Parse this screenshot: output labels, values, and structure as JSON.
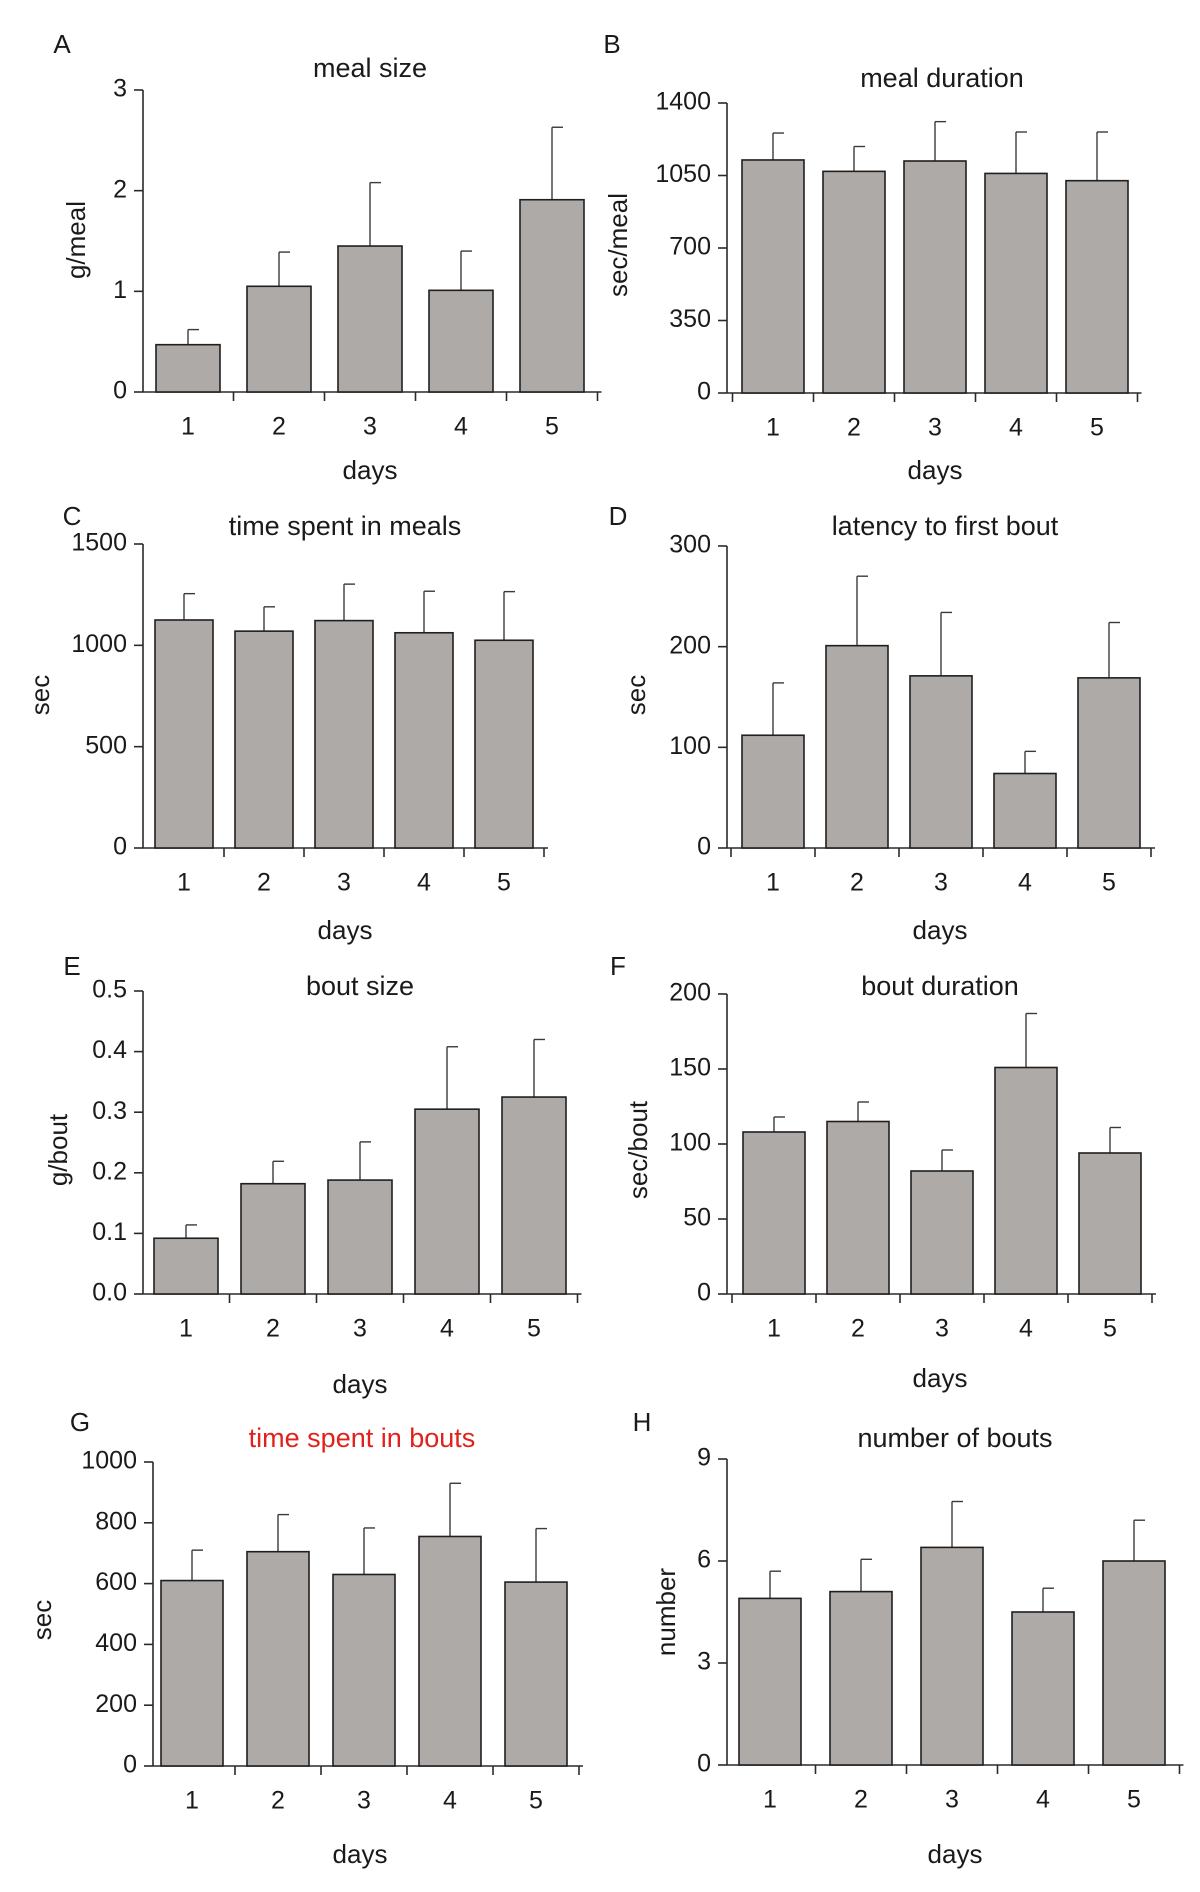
{
  "style": {
    "bar_fill": "#aeaaa8",
    "title_highlight": "#e0211c",
    "text": "#1a1a1a"
  },
  "chart_data": [
    {
      "letter": "A",
      "type": "bar",
      "title": "meal size",
      "title_color": "",
      "xlabel": "days",
      "ylabel": "g/meal",
      "categories": [
        "1",
        "2",
        "3",
        "4",
        "5"
      ],
      "values": [
        0.47,
        1.05,
        1.45,
        1.01,
        1.91
      ],
      "errors": [
        0.15,
        0.34,
        0.63,
        0.39,
        0.72
      ],
      "ylim": [
        0,
        3
      ],
      "yticks": [
        0,
        1,
        2,
        3
      ],
      "ytick_labels": [
        "0",
        "1",
        "2",
        "3"
      ]
    },
    {
      "letter": "B",
      "type": "bar",
      "title": "meal duration",
      "title_color": "",
      "xlabel": "days",
      "ylabel": "sec/meal",
      "categories": [
        "1",
        "2",
        "3",
        "4",
        "5"
      ],
      "values": [
        1125,
        1070,
        1120,
        1060,
        1025
      ],
      "errors": [
        130,
        120,
        190,
        200,
        235
      ],
      "ylim": [
        0,
        1400
      ],
      "yticks": [
        0,
        350,
        700,
        1050,
        1400
      ],
      "ytick_labels": [
        "0",
        "350",
        "700",
        "1050",
        "1400"
      ]
    },
    {
      "letter": "C",
      "type": "bar",
      "title": "time spent in meals",
      "title_color": "",
      "xlabel": "days",
      "ylabel": "sec",
      "categories": [
        "1",
        "2",
        "3",
        "4",
        "5"
      ],
      "values": [
        1125,
        1070,
        1122,
        1062,
        1025
      ],
      "errors": [
        130,
        120,
        180,
        205,
        240
      ],
      "ylim": [
        0,
        1500
      ],
      "yticks": [
        0,
        500,
        1000,
        1500
      ],
      "ytick_labels": [
        "0",
        "500",
        "1000",
        "1500"
      ]
    },
    {
      "letter": "D",
      "type": "bar",
      "title": "latency to first bout",
      "title_color": "",
      "xlabel": "days",
      "ylabel": "sec",
      "categories": [
        "1",
        "2",
        "3",
        "4",
        "5"
      ],
      "values": [
        112,
        201,
        171,
        74,
        169
      ],
      "errors": [
        52,
        69,
        63,
        22,
        55
      ],
      "ylim": [
        0,
        300
      ],
      "yticks": [
        0,
        100,
        200,
        300
      ],
      "ytick_labels": [
        "0",
        "100",
        "200",
        "300"
      ]
    },
    {
      "letter": "E",
      "type": "bar",
      "title": "bout size",
      "title_color": "",
      "xlabel": "days",
      "ylabel": "g/bout",
      "categories": [
        "1",
        "2",
        "3",
        "4",
        "5"
      ],
      "values": [
        0.092,
        0.182,
        0.188,
        0.305,
        0.325
      ],
      "errors": [
        0.022,
        0.037,
        0.063,
        0.103,
        0.095
      ],
      "ylim": [
        0,
        0.5
      ],
      "yticks": [
        0,
        0.1,
        0.2,
        0.3,
        0.4,
        0.5
      ],
      "ytick_labels": [
        "0.0",
        "0.1",
        "0.2",
        "0.3",
        "0.4",
        "0.5"
      ]
    },
    {
      "letter": "F",
      "type": "bar",
      "title": "bout duration",
      "title_color": "",
      "xlabel": "days",
      "ylabel": "sec/bout",
      "categories": [
        "1",
        "2",
        "3",
        "4",
        "5"
      ],
      "values": [
        108,
        115,
        82,
        151,
        94
      ],
      "errors": [
        10,
        13,
        14,
        36,
        17
      ],
      "ylim": [
        0,
        200
      ],
      "yticks": [
        0,
        50,
        100,
        150,
        200
      ],
      "ytick_labels": [
        "0",
        "50",
        "100",
        "150",
        "200"
      ]
    },
    {
      "letter": "G",
      "type": "bar",
      "title": "time spent in bouts",
      "title_color": "#e0211c",
      "xlabel": "days",
      "ylabel": "sec",
      "categories": [
        "1",
        "2",
        "3",
        "4",
        "5"
      ],
      "values": [
        610,
        705,
        630,
        755,
        605
      ],
      "errors": [
        100,
        122,
        153,
        175,
        176
      ],
      "ylim": [
        0,
        1000
      ],
      "yticks": [
        0,
        200,
        400,
        600,
        800,
        1000
      ],
      "ytick_labels": [
        "0",
        "200",
        "400",
        "600",
        "800",
        "1000"
      ]
    },
    {
      "letter": "H",
      "type": "bar",
      "title": "number of bouts",
      "title_color": "",
      "xlabel": "days",
      "ylabel": "number",
      "categories": [
        "1",
        "2",
        "3",
        "4",
        "5"
      ],
      "values": [
        4.9,
        5.1,
        6.4,
        4.5,
        6.0
      ],
      "errors": [
        0.8,
        0.95,
        1.35,
        0.7,
        1.2
      ],
      "ylim": [
        0,
        9
      ],
      "yticks": [
        0,
        3,
        6,
        9
      ],
      "ytick_labels": [
        "0",
        "3",
        "6",
        "9"
      ]
    }
  ]
}
